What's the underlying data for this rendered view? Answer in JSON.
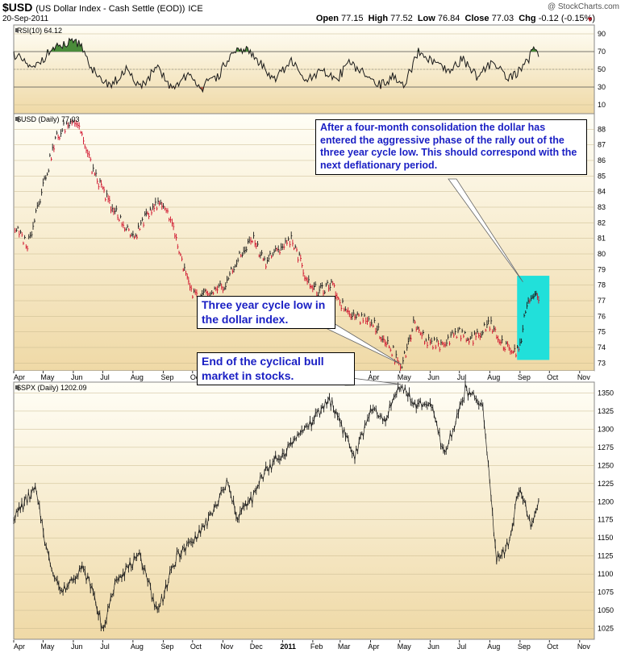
{
  "header": {
    "symbol": "$USD",
    "description": "(US Dollar Index - Cash Settle (EOD))",
    "exchange": "ICE",
    "date": "20-Sep-2011",
    "watermark": "@ StockCharts.com",
    "quote": {
      "open_label": "Open",
      "open": "77.15",
      "high_label": "High",
      "high": "77.52",
      "low_label": "Low",
      "low": "76.84",
      "close_label": "Close",
      "close": "77.03",
      "chg_label": "Chg",
      "chg": "-0.12 (-0.15%)"
    }
  },
  "annotations": {
    "consolidation": "After a four-month consolidation the dollar has entered the aggressive phase of the rally out of the three year cycle low. This should correspond with the next deflationary period.",
    "cycle_low": "Three year cycle low in the dollar index.",
    "bull_end": "End of the cyclical bull market in stocks."
  },
  "colors": {
    "panel_bg_top": "#fffef6",
    "panel_bg_bottom": "#efd9a6",
    "grid": "#c8b98e",
    "price_line": "#1a1a1a",
    "down_line": "#d0102a",
    "highlight_box": "#21e0da",
    "rsi_overbought_fill": "#4a8c3a",
    "rsi_oversold_fill": "#b05a42",
    "annotation_text": "#1a1fc4"
  },
  "chart_data": [
    {
      "type": "line",
      "title": "RSI(10) 64.12",
      "series": [
        {
          "name": "RSI(10)",
          "x": [
            "2010-04-01",
            "2010-04-20",
            "2010-05-10",
            "2010-05-25",
            "2010-06-08",
            "2010-06-25",
            "2010-07-10",
            "2010-07-25",
            "2010-08-10",
            "2010-08-25",
            "2010-09-10",
            "2010-09-25",
            "2010-10-10",
            "2010-10-25",
            "2010-11-10",
            "2010-11-25",
            "2010-12-10",
            "2010-12-25",
            "2011-01-10",
            "2011-01-25",
            "2011-02-10",
            "2011-02-25",
            "2011-03-10",
            "2011-03-25",
            "2011-04-10",
            "2011-04-25",
            "2011-05-05",
            "2011-05-20",
            "2011-06-05",
            "2011-06-20",
            "2011-07-05",
            "2011-07-20",
            "2011-08-05",
            "2011-08-20",
            "2011-09-01",
            "2011-09-10",
            "2011-09-15",
            "2011-09-20"
          ],
          "values": [
            68,
            50,
            72,
            78,
            80,
            40,
            33,
            48,
            30,
            52,
            27,
            45,
            30,
            40,
            66,
            74,
            55,
            40,
            60,
            36,
            48,
            38,
            60,
            45,
            32,
            42,
            30,
            68,
            58,
            45,
            62,
            40,
            60,
            40,
            48,
            62,
            80,
            64.12
          ]
        }
      ],
      "ylim": [
        0,
        100
      ],
      "yticks": [
        10,
        30,
        50,
        70,
        90
      ],
      "reference_lines": [
        30,
        70
      ]
    },
    {
      "type": "line",
      "title": "$USD (Daily) 77.03",
      "categories": [
        "Apr",
        "May",
        "Jun",
        "Jul",
        "Aug",
        "Sep",
        "Oct",
        "Nov",
        "Dec",
        "2011",
        "Feb",
        "Mar",
        "Apr",
        "May",
        "Jun",
        "Jul",
        "Aug",
        "Sep",
        "Oct",
        "Nov"
      ],
      "series": [
        {
          "name": "$USD (Daily)",
          "x": [
            "2010-04-01",
            "2010-04-15",
            "2010-05-01",
            "2010-05-15",
            "2010-06-01",
            "2010-06-07",
            "2010-06-20",
            "2010-07-01",
            "2010-07-15",
            "2010-08-01",
            "2010-08-20",
            "2010-09-01",
            "2010-09-10",
            "2010-09-20",
            "2010-10-01",
            "2010-10-15",
            "2010-11-01",
            "2010-11-15",
            "2010-12-01",
            "2010-12-15",
            "2011-01-01",
            "2011-01-10",
            "2011-01-25",
            "2011-02-05",
            "2011-02-20",
            "2011-03-05",
            "2011-03-20",
            "2011-04-05",
            "2011-04-20",
            "2011-05-03",
            "2011-05-15",
            "2011-06-01",
            "2011-06-15",
            "2011-07-01",
            "2011-07-15",
            "2011-08-01",
            "2011-08-15",
            "2011-08-25",
            "2011-09-01",
            "2011-09-08",
            "2011-09-15",
            "2011-09-20"
          ],
          "values": [
            81.8,
            80.5,
            84.5,
            87.5,
            88.7,
            88.2,
            85.5,
            84.0,
            82.5,
            81.0,
            83.0,
            83.2,
            82.0,
            79.5,
            77.2,
            77.3,
            77.8,
            79.5,
            81.0,
            79.5,
            80.5,
            81.0,
            78.5,
            77.5,
            78.0,
            76.5,
            76.0,
            75.5,
            74.0,
            72.8,
            75.5,
            74.3,
            74.0,
            75.0,
            74.5,
            75.5,
            74.0,
            73.8,
            74.0,
            77.0,
            77.2,
            77.03
          ]
        }
      ],
      "ylim": [
        72.5,
        89
      ],
      "yticks": [
        73,
        74,
        75,
        76,
        77,
        78,
        79,
        80,
        81,
        82,
        83,
        84,
        85,
        86,
        87,
        88
      ]
    },
    {
      "type": "line",
      "title": "$SPX (Daily) 1202.09",
      "categories": [
        "Apr",
        "May",
        "Jun",
        "Jul",
        "Aug",
        "Sep",
        "Oct",
        "Nov",
        "Dec",
        "2011",
        "Feb",
        "Mar",
        "Apr",
        "May",
        "Jun",
        "Jul",
        "Aug",
        "Sep",
        "Oct",
        "Nov"
      ],
      "series": [
        {
          "name": "$SPX (Daily)",
          "x": [
            "2010-04-01",
            "2010-04-23",
            "2010-05-07",
            "2010-05-20",
            "2010-06-10",
            "2010-06-20",
            "2010-07-02",
            "2010-07-15",
            "2010-08-09",
            "2010-08-26",
            "2010-09-15",
            "2010-10-01",
            "2010-10-20",
            "2010-11-05",
            "2010-11-16",
            "2010-12-01",
            "2010-12-15",
            "2011-01-01",
            "2011-01-15",
            "2011-02-01",
            "2011-02-18",
            "2011-03-01",
            "2011-03-16",
            "2011-04-01",
            "2011-04-15",
            "2011-05-02",
            "2011-05-15",
            "2011-06-01",
            "2011-06-16",
            "2011-07-07",
            "2011-07-25",
            "2011-08-08",
            "2011-08-20",
            "2011-08-31",
            "2011-09-08",
            "2011-09-12",
            "2011-09-20"
          ],
          "values": [
            1180,
            1217,
            1120,
            1075,
            1110,
            1080,
            1022,
            1095,
            1125,
            1047,
            1125,
            1145,
            1180,
            1225,
            1180,
            1205,
            1245,
            1265,
            1290,
            1310,
            1343,
            1310,
            1260,
            1330,
            1310,
            1363,
            1335,
            1335,
            1265,
            1354,
            1330,
            1120,
            1140,
            1220,
            1190,
            1160,
            1202.09
          ]
        }
      ],
      "ylim": [
        1010,
        1365
      ],
      "yticks": [
        1025,
        1050,
        1075,
        1100,
        1125,
        1150,
        1175,
        1200,
        1225,
        1250,
        1275,
        1300,
        1325,
        1350
      ]
    }
  ]
}
